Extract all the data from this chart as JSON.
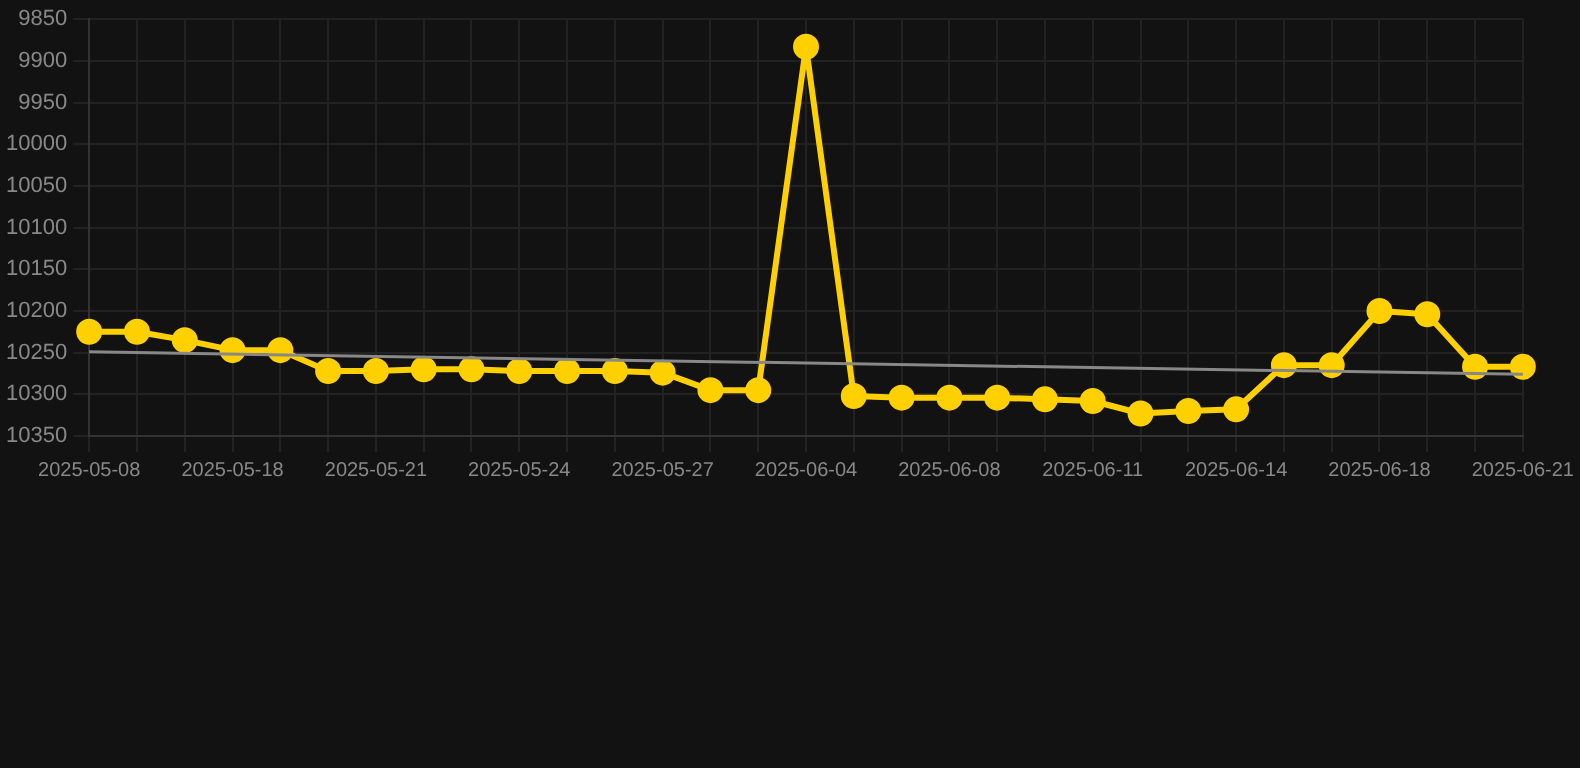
{
  "chart_data": {
    "type": "line",
    "categories": [
      "2025-05-08",
      null,
      null,
      "2025-05-18",
      null,
      null,
      "2025-05-21",
      null,
      null,
      "2025-05-24",
      null,
      null,
      "2025-05-27",
      null,
      null,
      "2025-06-04",
      null,
      null,
      "2025-06-08",
      null,
      null,
      "2025-06-11",
      null,
      null,
      "2025-06-14",
      null,
      null,
      "2025-06-18",
      null,
      null,
      "2025-06-21"
    ],
    "series": [
      {
        "color": "#ffd000",
        "marker": "circle",
        "values": [
          10225,
          10225,
          10235,
          10247,
          10247,
          10272,
          10272,
          10270,
          10270,
          10272,
          10272,
          10272,
          10274,
          10295,
          10295,
          9883,
          10302,
          10304,
          10304,
          10304,
          10306,
          10308,
          10323,
          10320,
          10318,
          10265,
          10265,
          10200,
          10204,
          10267,
          10267
        ]
      },
      {
        "color": "#888888",
        "marker": "none",
        "values": [
          10249,
          null,
          null,
          null,
          null,
          null,
          null,
          null,
          null,
          null,
          null,
          null,
          null,
          null,
          null,
          null,
          null,
          null,
          null,
          null,
          null,
          null,
          null,
          null,
          null,
          null,
          null,
          null,
          null,
          null,
          10276
        ]
      }
    ],
    "ylim": [
      10350,
      9850
    ],
    "yticks": [
      9850,
      9900,
      9950,
      10000,
      10050,
      10100,
      10150,
      10200,
      10250,
      10300,
      10350
    ],
    "grid": true,
    "legend": false
  }
}
